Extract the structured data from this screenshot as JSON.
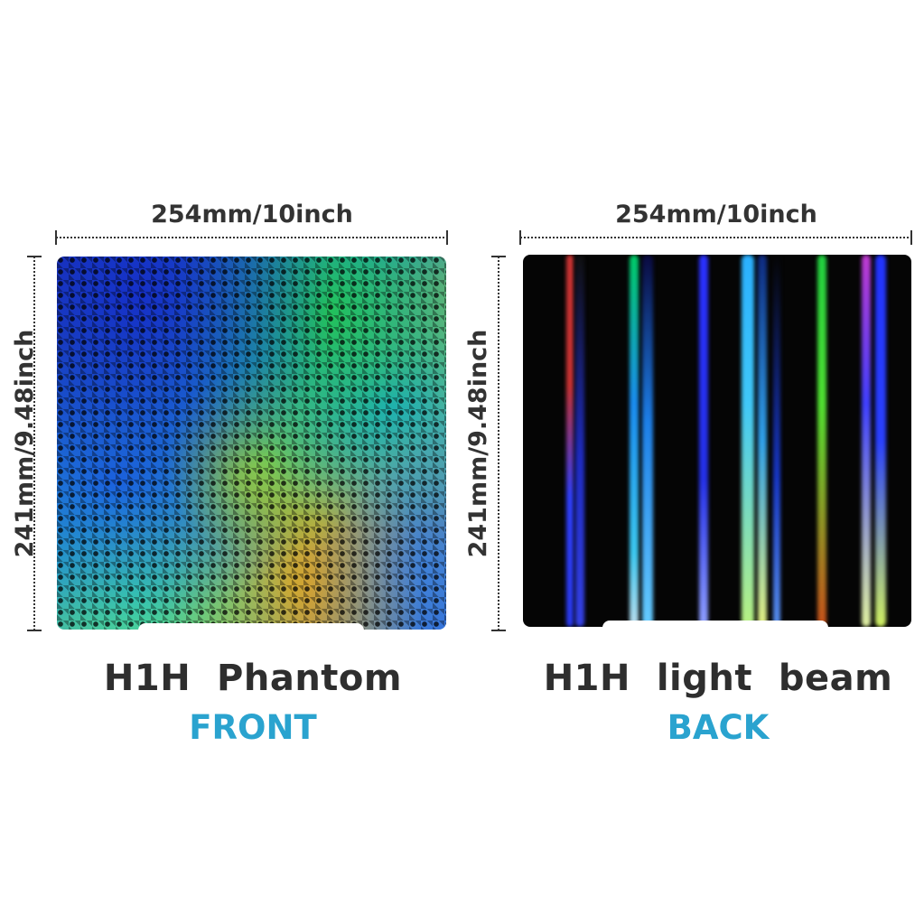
{
  "left": {
    "width_label": "254mm/10inch",
    "height_label": "241mm/9.48inch",
    "title": "H1H  Phantom",
    "side": "FRONT",
    "surface": "holographic-diamond-pattern"
  },
  "right": {
    "width_label": "254mm/10inch",
    "height_label": "241mm/9.48inch",
    "title": "H1H  light  beam",
    "side": "BACK",
    "surface": "light-beam-stripes"
  },
  "colors": {
    "heading": "#2e2e2e",
    "side_label": "#2aa3cf",
    "dimension": "#333333"
  }
}
